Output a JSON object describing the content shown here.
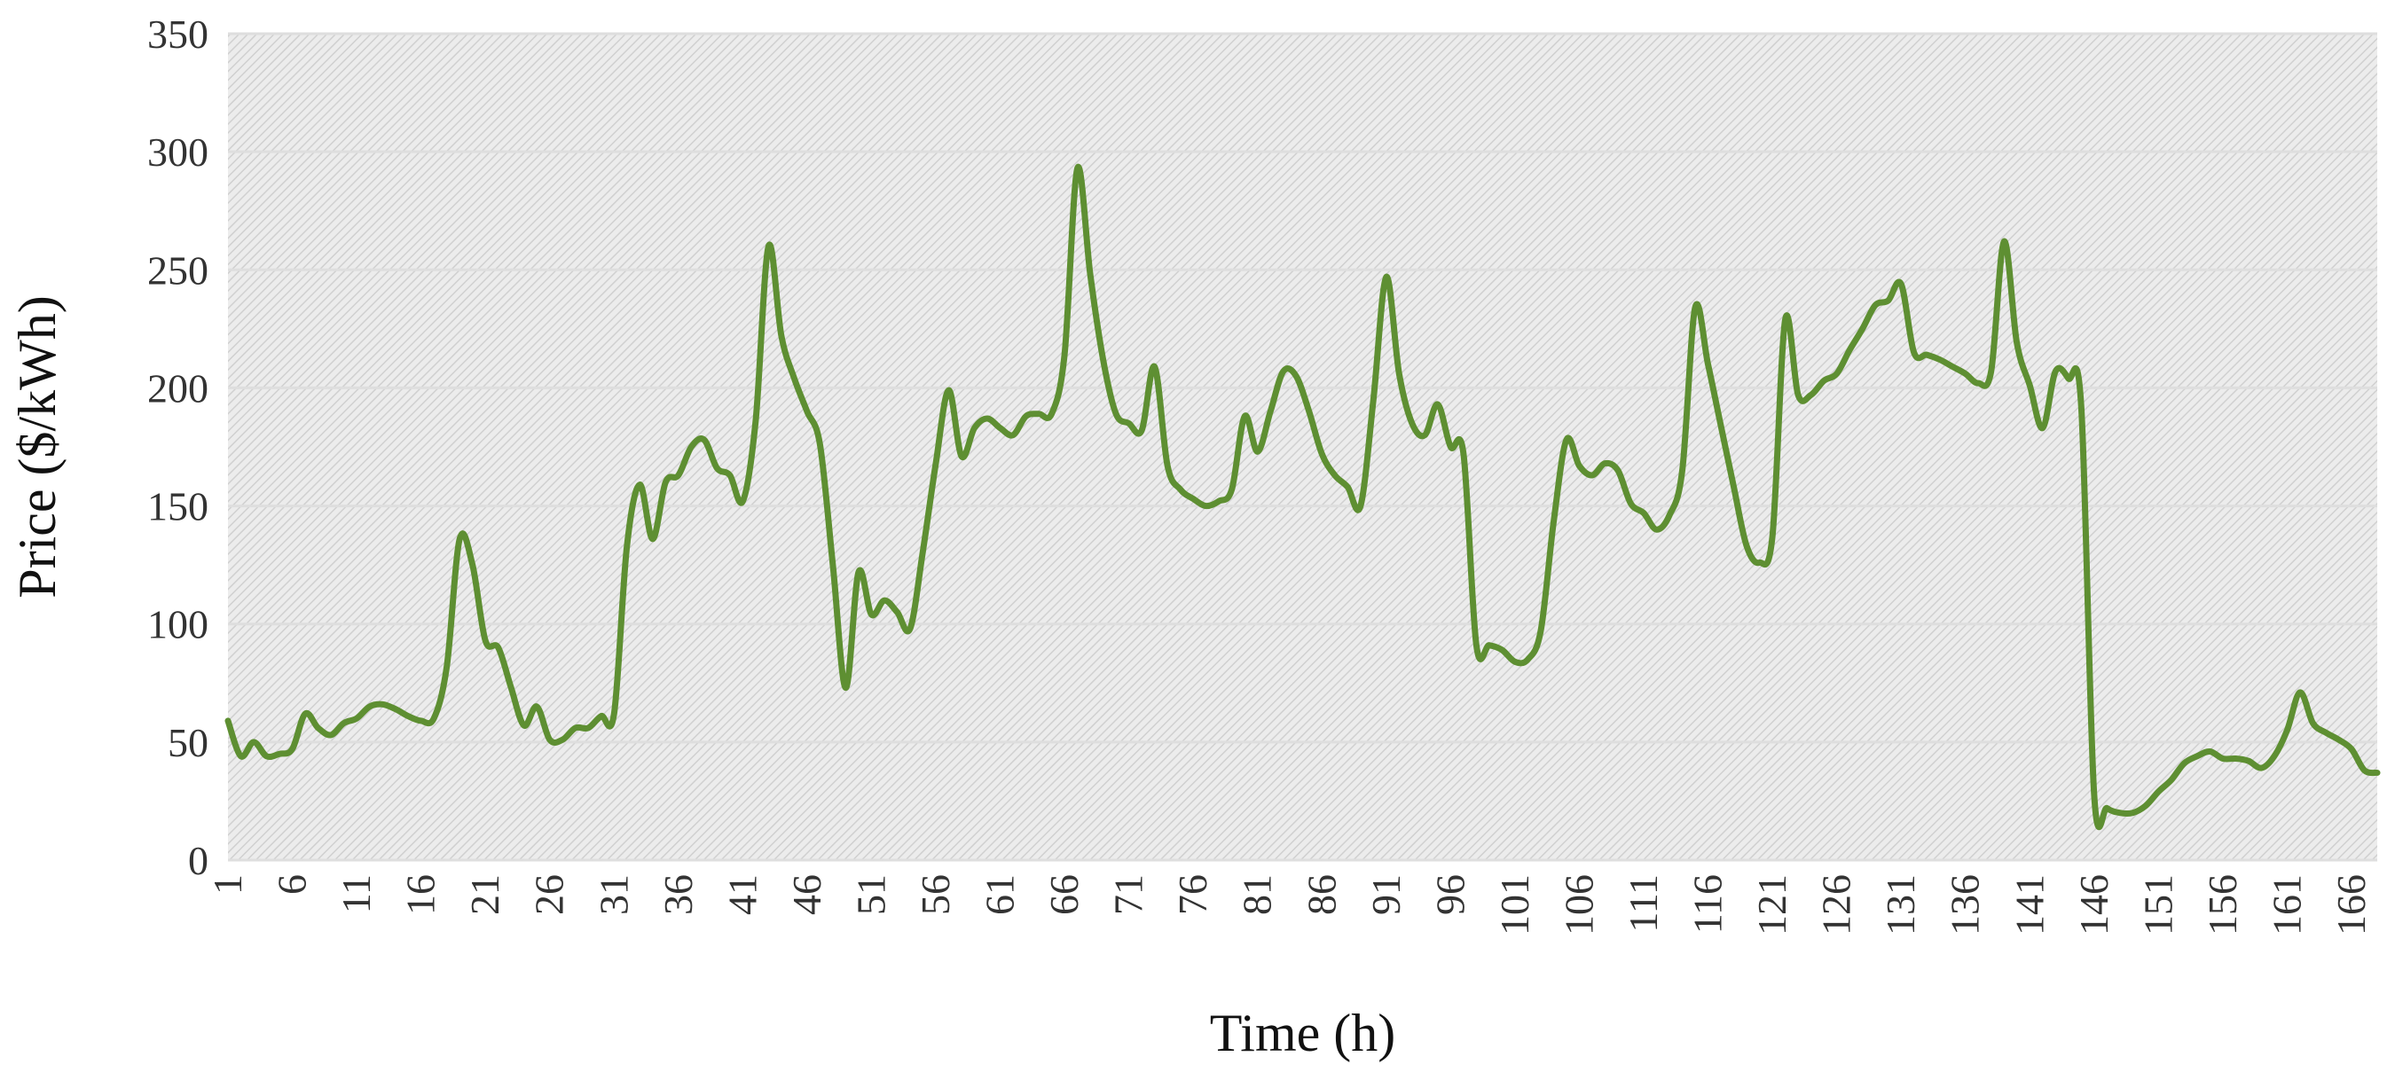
{
  "chart_data": {
    "type": "line",
    "title": "",
    "xlabel": "Time (h)",
    "ylabel": "Price ($/kWh)",
    "ylim": [
      0,
      350
    ],
    "y_ticks": [
      0,
      50,
      100,
      150,
      200,
      250,
      300,
      350
    ],
    "xlim": [
      1,
      168
    ],
    "x_tick_labels": [
      "1",
      "6",
      "11",
      "16",
      "21",
      "26",
      "31",
      "36",
      "41",
      "46",
      "51",
      "56",
      "61",
      "66",
      "71",
      "76",
      "81",
      "86",
      "91",
      "96",
      "101",
      "106",
      "111",
      "116",
      "121",
      "126",
      "131",
      "136",
      "141",
      "146",
      "151",
      "156",
      "161",
      "166"
    ],
    "grid": true,
    "legend": "none",
    "series": [
      {
        "color": "#5e8f32",
        "x": [
          1,
          2,
          3,
          4,
          5,
          6,
          7,
          8,
          9,
          10,
          11,
          12,
          13,
          14,
          15,
          16,
          17,
          18,
          19,
          20,
          21,
          22,
          23,
          24,
          25,
          26,
          27,
          28,
          29,
          30,
          31,
          32,
          33,
          34,
          35,
          36,
          37,
          38,
          39,
          40,
          41,
          42,
          43,
          44,
          45,
          46,
          47,
          48,
          49,
          50,
          51,
          52,
          53,
          54,
          55,
          56,
          57,
          58,
          59,
          60,
          61,
          62,
          63,
          64,
          65,
          66,
          67,
          68,
          69,
          70,
          71,
          72,
          73,
          74,
          75,
          76,
          77,
          78,
          79,
          80,
          81,
          82,
          83,
          84,
          85,
          86,
          87,
          88,
          89,
          90,
          91,
          92,
          93,
          94,
          95,
          96,
          97,
          98,
          99,
          100,
          101,
          102,
          103,
          104,
          105,
          106,
          107,
          108,
          109,
          110,
          111,
          112,
          113,
          114,
          115,
          116,
          117,
          118,
          119,
          120,
          121,
          122,
          123,
          124,
          125,
          126,
          127,
          128,
          129,
          130,
          131,
          132,
          133,
          134,
          135,
          136,
          137,
          138,
          139,
          140,
          141,
          142,
          143,
          144,
          145,
          146,
          147,
          148,
          149,
          150,
          151,
          152,
          153,
          154,
          155,
          156,
          157,
          158,
          159,
          160,
          161,
          162,
          163,
          164,
          165,
          166,
          167,
          168
        ],
        "values": [
          59,
          44,
          50,
          44,
          45,
          47,
          62,
          56,
          53,
          58,
          60,
          65,
          66,
          64,
          61,
          59,
          60,
          82,
          136,
          125,
          93,
          90,
          73,
          57,
          65,
          51,
          51,
          56,
          56,
          61,
          62,
          133,
          159,
          136,
          160,
          163,
          175,
          178,
          166,
          163,
          152,
          186,
          260,
          222,
          204,
          190,
          176,
          125,
          73,
          122,
          104,
          110,
          105,
          98,
          131,
          168,
          199,
          171,
          183,
          187,
          183,
          180,
          188,
          189,
          189,
          214,
          293,
          248,
          212,
          189,
          185,
          182,
          209,
          167,
          157,
          153,
          150,
          152,
          157,
          188,
          173,
          190,
          207,
          205,
          190,
          172,
          163,
          158,
          150,
          195,
          247,
          206,
          185,
          180,
          193,
          175,
          172,
          91,
          91,
          89,
          84,
          85,
          97,
          143,
          178,
          167,
          163,
          168,
          165,
          151,
          147,
          140,
          146,
          165,
          234,
          210,
          184,
          158,
          133,
          126,
          137,
          229,
          197,
          197,
          203,
          206,
          216,
          225,
          235,
          237,
          244,
          215,
          214,
          212,
          209,
          206,
          202,
          207,
          262,
          219,
          201,
          183,
          207,
          204,
          192,
          28,
          22,
          20,
          20,
          23,
          29,
          34,
          41,
          44,
          46,
          43,
          43,
          42,
          39,
          44,
          55,
          71,
          58,
          54,
          51,
          47,
          38,
          37
        ]
      }
    ]
  }
}
